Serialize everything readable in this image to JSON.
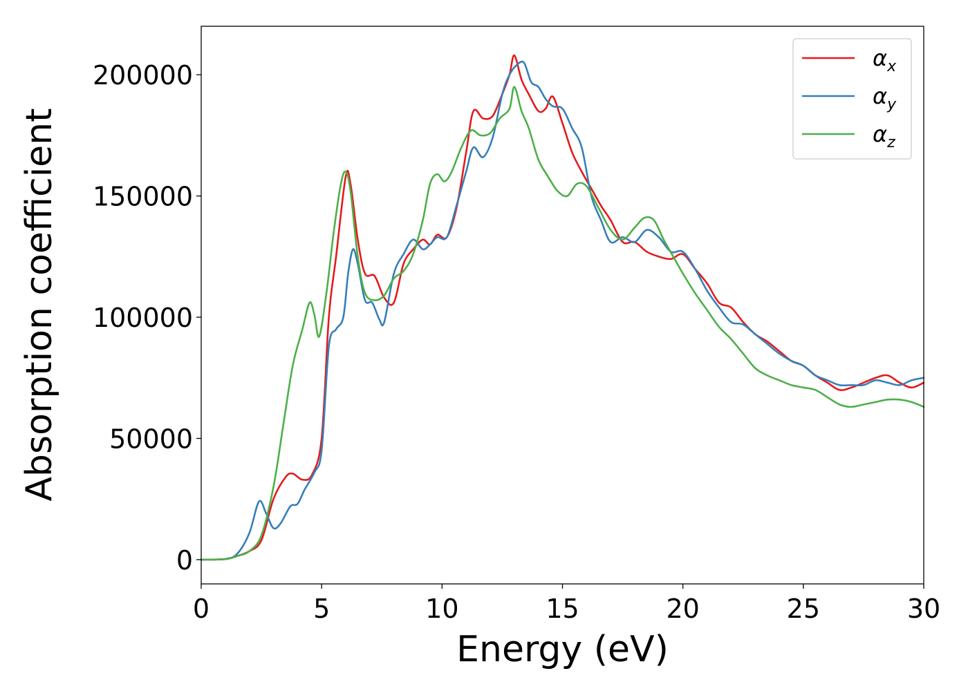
{
  "chart_data": {
    "type": "line",
    "title": "",
    "xlabel": "Energy (eV)",
    "ylabel": "Absorption coefficient",
    "xlim": [
      0,
      30
    ],
    "ylim": [
      -10000,
      220000
    ],
    "xticks": [
      0,
      5,
      10,
      15,
      20,
      25,
      30
    ],
    "xtick_labels": [
      "0",
      "5",
      "10",
      "15",
      "20",
      "25",
      "30"
    ],
    "yticks": [
      0,
      50000,
      100000,
      150000,
      200000
    ],
    "ytick_labels": [
      "0",
      "50000",
      "100000",
      "150000",
      "200000"
    ],
    "grid": false,
    "legend_position": "top-right",
    "series": [
      {
        "name": "αx",
        "symbol": "α",
        "subscript": "x",
        "color": "#e41a1c",
        "x": [
          0,
          1,
          1.5,
          2,
          2.5,
          3,
          3.5,
          3.8,
          4.2,
          4.6,
          5,
          5.3,
          5.6,
          6,
          6.2,
          6.5,
          6.8,
          7.2,
          7.6,
          8,
          8.4,
          8.8,
          9.2,
          9.5,
          9.8,
          10.2,
          10.6,
          11,
          11.3,
          11.7,
          12.1,
          12.5,
          12.8,
          13.0,
          13.3,
          13.6,
          14.0,
          14.3,
          14.6,
          15.0,
          15.4,
          15.8,
          16.2,
          16.6,
          17.0,
          17.5,
          18.0,
          18.5,
          19.0,
          19.5,
          20.0,
          20.5,
          21.0,
          21.5,
          22.0,
          22.5,
          23.0,
          23.5,
          24.0,
          24.5,
          25.0,
          25.5,
          26.0,
          26.5,
          27.0,
          27.5,
          28.0,
          28.5,
          29.0,
          29.5,
          30
        ],
        "y": [
          0,
          200,
          1500,
          3500,
          8000,
          25000,
          34000,
          35500,
          33000,
          35000,
          50000,
          100000,
          125000,
          158000,
          155000,
          132000,
          118000,
          117000,
          108000,
          106000,
          122000,
          128000,
          132000,
          130000,
          134000,
          133000,
          145000,
          168000,
          185000,
          182000,
          183000,
          192000,
          200000,
          208000,
          198000,
          192000,
          185000,
          186000,
          191000,
          180000,
          168000,
          160000,
          153000,
          146000,
          140000,
          131000,
          131000,
          127000,
          125000,
          124000,
          126000,
          120000,
          114000,
          106000,
          104000,
          98000,
          93000,
          90000,
          86000,
          82000,
          80000,
          76000,
          73000,
          70000,
          71000,
          73000,
          75000,
          76000,
          73000,
          71000,
          73000
        ]
      },
      {
        "name": "αy",
        "symbol": "α",
        "subscript": "y",
        "color": "#377eb8",
        "x": [
          0,
          1,
          1.5,
          2,
          2.4,
          2.7,
          3.0,
          3.3,
          3.7,
          4.0,
          4.3,
          4.7,
          5.0,
          5.3,
          5.6,
          5.9,
          6.1,
          6.3,
          6.5,
          6.8,
          7.1,
          7.4,
          7.6,
          8.0,
          8.4,
          8.8,
          9.2,
          9.5,
          9.8,
          10.2,
          10.6,
          11.0,
          11.3,
          11.7,
          12.1,
          12.5,
          12.8,
          13.1,
          13.4,
          13.7,
          14.0,
          14.3,
          14.6,
          15.0,
          15.4,
          15.8,
          16.2,
          16.6,
          17.0,
          17.5,
          18.0,
          18.5,
          19.0,
          19.5,
          20.0,
          20.5,
          21.0,
          21.5,
          22.0,
          22.5,
          23.0,
          23.5,
          24.0,
          24.5,
          25.0,
          25.5,
          26.0,
          26.5,
          27.0,
          27.5,
          28.0,
          28.5,
          29.0,
          29.5,
          30
        ],
        "y": [
          0,
          300,
          2500,
          11000,
          24000,
          19000,
          13000,
          15000,
          22000,
          23000,
          29000,
          36000,
          45000,
          88000,
          95000,
          100000,
          118000,
          128000,
          122000,
          107000,
          106000,
          99000,
          98000,
          118000,
          126000,
          132000,
          128000,
          130000,
          133000,
          133000,
          146000,
          160000,
          170000,
          166000,
          174000,
          192000,
          200000,
          204000,
          205000,
          197000,
          195000,
          190000,
          187000,
          186000,
          178000,
          170000,
          150000,
          140000,
          131000,
          133000,
          131000,
          136000,
          133000,
          127000,
          127000,
          120000,
          111000,
          104000,
          98000,
          97000,
          93000,
          89000,
          85000,
          82000,
          80000,
          76000,
          74000,
          72000,
          72000,
          72000,
          74000,
          73000,
          72000,
          74000,
          75000
        ]
      },
      {
        "name": "αz",
        "symbol": "α",
        "subscript": "z",
        "color": "#4daf4a",
        "x": [
          0,
          1,
          1.5,
          2,
          2.5,
          3.0,
          3.4,
          3.8,
          4.2,
          4.5,
          4.7,
          4.9,
          5.2,
          5.5,
          5.8,
          6.0,
          6.2,
          6.5,
          6.8,
          7.2,
          7.6,
          8.0,
          8.4,
          8.8,
          9.2,
          9.5,
          9.8,
          10.1,
          10.4,
          10.8,
          11.2,
          11.6,
          12.0,
          12.4,
          12.8,
          13.0,
          13.3,
          13.6,
          14.0,
          14.4,
          14.8,
          15.2,
          15.6,
          16.0,
          16.5,
          17.0,
          17.5,
          18.0,
          18.4,
          18.8,
          19.2,
          19.6,
          20.0,
          20.5,
          21.0,
          21.5,
          22.0,
          22.5,
          23.0,
          23.5,
          24.0,
          24.5,
          25.0,
          25.5,
          26.0,
          26.5,
          27.0,
          27.5,
          28.0,
          28.5,
          29.0,
          29.5,
          30
        ],
        "y": [
          0,
          200,
          1500,
          3500,
          10000,
          30000,
          55000,
          80000,
          95000,
          106000,
          101000,
          92000,
          110000,
          135000,
          155000,
          160000,
          152000,
          125000,
          110000,
          107000,
          109000,
          116000,
          119000,
          126000,
          140000,
          155000,
          159000,
          156000,
          160000,
          170000,
          177000,
          175000,
          176000,
          182000,
          186000,
          195000,
          185000,
          178000,
          165000,
          158000,
          152000,
          150000,
          155000,
          154000,
          145000,
          136000,
          132000,
          137000,
          141000,
          140000,
          132000,
          125000,
          118000,
          110000,
          103000,
          96000,
          91000,
          85000,
          79000,
          76000,
          74000,
          72000,
          71000,
          70000,
          67000,
          64000,
          63000,
          64000,
          65000,
          66000,
          66000,
          65000,
          63000
        ]
      }
    ]
  }
}
